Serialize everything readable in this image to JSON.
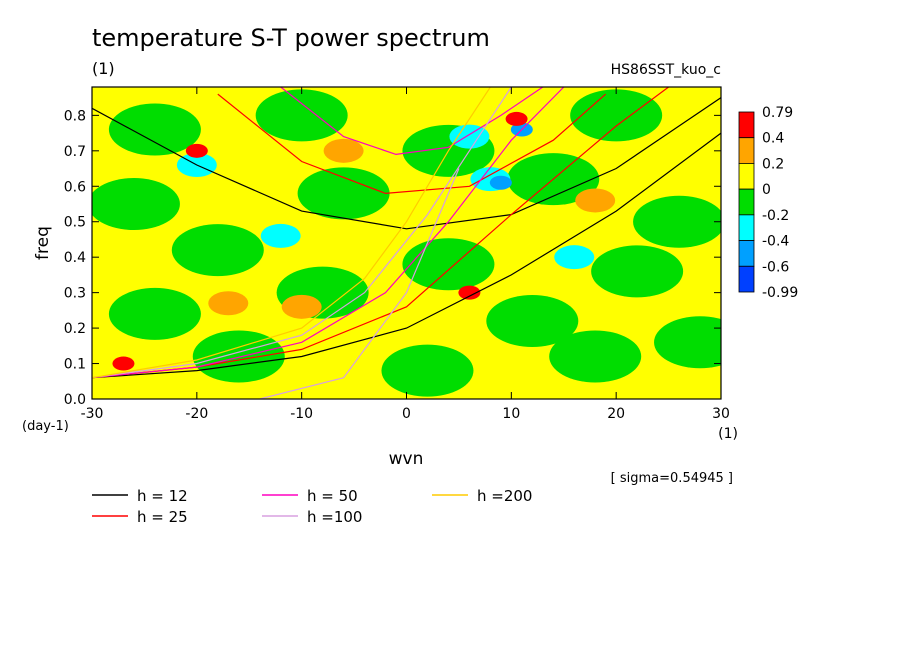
{
  "chart_data": {
    "type": "heatmap",
    "title": "temperature S-T power spectrum",
    "subtitle": "(1)",
    "dataset_label": "HS86SST_kuo_c",
    "xlabel": "wvn",
    "x_unit": "(1)",
    "ylabel": "freq",
    "y_unit": "(day-1)",
    "xlim": [
      -30,
      30
    ],
    "ylim": [
      0,
      0.88
    ],
    "x_ticks": [
      "-30",
      "-20",
      "-10",
      "0",
      "10",
      "20",
      "30"
    ],
    "y_ticks": [
      "0.0",
      "0.1",
      "0.2",
      "0.3",
      "0.4",
      "0.5",
      "0.6",
      "0.7",
      "0.8"
    ],
    "sigma_label": "[ sigma=0.54945 ]",
    "colorbar": {
      "labels": [
        "0.79",
        "0.4",
        "0.2",
        "0",
        "-0.2",
        "-0.4",
        "-0.6",
        "-0.99"
      ],
      "colors": [
        "#ff0000",
        "#ffa500",
        "#ffff00",
        "#00dd00",
        "#00ffff",
        "#00a0ff",
        "#0040ff"
      ]
    },
    "background_color": "#ffff00",
    "patches": [
      {
        "x": -24,
        "y": 0.76,
        "color": "#00dd00"
      },
      {
        "x": -10,
        "y": 0.8,
        "color": "#00dd00"
      },
      {
        "x": 20,
        "y": 0.8,
        "color": "#00dd00"
      },
      {
        "x": -26,
        "y": 0.55,
        "color": "#00dd00"
      },
      {
        "x": -6,
        "y": 0.58,
        "color": "#00dd00"
      },
      {
        "x": 14,
        "y": 0.62,
        "color": "#00dd00"
      },
      {
        "x": 26,
        "y": 0.5,
        "color": "#00dd00"
      },
      {
        "x": -18,
        "y": 0.42,
        "color": "#00dd00"
      },
      {
        "x": 4,
        "y": 0.38,
        "color": "#00dd00"
      },
      {
        "x": 22,
        "y": 0.36,
        "color": "#00dd00"
      },
      {
        "x": -24,
        "y": 0.24,
        "color": "#00dd00"
      },
      {
        "x": -8,
        "y": 0.3,
        "color": "#00dd00"
      },
      {
        "x": 12,
        "y": 0.22,
        "color": "#00dd00"
      },
      {
        "x": -16,
        "y": 0.12,
        "color": "#00dd00"
      },
      {
        "x": 2,
        "y": 0.08,
        "color": "#00dd00"
      },
      {
        "x": 18,
        "y": 0.12,
        "color": "#00dd00"
      },
      {
        "x": 28,
        "y": 0.16,
        "color": "#00dd00"
      },
      {
        "x": 4,
        "y": 0.7,
        "color": "#00dd00"
      },
      {
        "x": -20,
        "y": 0.66,
        "color": "#00ffff"
      },
      {
        "x": 8,
        "y": 0.62,
        "color": "#00ffff"
      },
      {
        "x": 6,
        "y": 0.74,
        "color": "#00ffff"
      },
      {
        "x": -12,
        "y": 0.46,
        "color": "#00ffff"
      },
      {
        "x": 16,
        "y": 0.4,
        "color": "#00ffff"
      },
      {
        "x": 11,
        "y": 0.76,
        "color": "#00a0ff"
      },
      {
        "x": 9,
        "y": 0.61,
        "color": "#00a0ff"
      },
      {
        "x": -10,
        "y": 0.26,
        "color": "#ffa500"
      },
      {
        "x": -17,
        "y": 0.27,
        "color": "#ffa500"
      },
      {
        "x": -6,
        "y": 0.7,
        "color": "#ffa500"
      },
      {
        "x": 18,
        "y": 0.56,
        "color": "#ffa500"
      },
      {
        "x": 6,
        "y": 0.3,
        "color": "#ff0000"
      },
      {
        "x": 10.5,
        "y": 0.79,
        "color": "#ff0000"
      },
      {
        "x": -20,
        "y": 0.7,
        "color": "#ff0000"
      },
      {
        "x": -27,
        "y": 0.1,
        "color": "#ff0000"
      }
    ],
    "series": [
      {
        "name": "h = 12",
        "color": "#000000",
        "kind": "dispersion-curves",
        "curves": [
          {
            "x": [
              -30,
              -20,
              -10,
              0,
              10,
              20,
              30
            ],
            "y": [
              0.82,
              0.66,
              0.53,
              0.48,
              0.52,
              0.65,
              0.85
            ]
          },
          {
            "x": [
              -30,
              -20,
              -10,
              0,
              10,
              20,
              30
            ],
            "y": [
              0.06,
              0.08,
              0.12,
              0.2,
              0.35,
              0.53,
              0.75
            ]
          }
        ]
      },
      {
        "name": "h = 25",
        "color": "#ff0000",
        "kind": "dispersion-curves",
        "curves": [
          {
            "x": [
              -18,
              -10,
              -2,
              6,
              14,
              19
            ],
            "y": [
              0.86,
              0.67,
              0.58,
              0.6,
              0.73,
              0.86
            ]
          },
          {
            "x": [
              -30,
              -20,
              -10,
              0,
              10,
              20,
              25
            ],
            "y": [
              0.06,
              0.09,
              0.14,
              0.26,
              0.52,
              0.77,
              0.88
            ]
          }
        ]
      },
      {
        "name": "h = 50",
        "color": "#ff00c0",
        "kind": "dispersion-curves",
        "curves": [
          {
            "x": [
              -12,
              -6,
              -1,
              4,
              9,
              13
            ],
            "y": [
              0.88,
              0.74,
              0.69,
              0.71,
              0.8,
              0.88
            ]
          },
          {
            "x": [
              -30,
              -20,
              -10,
              -2,
              4,
              10,
              15
            ],
            "y": [
              0.06,
              0.09,
              0.16,
              0.3,
              0.5,
              0.73,
              0.88
            ]
          }
        ]
      },
      {
        "name": "h =100",
        "color": "#d8a0e0",
        "kind": "dispersion-curves",
        "curves": [
          {
            "x": [
              -30,
              -20,
              -10,
              -4,
              2,
              6,
              10
            ],
            "y": [
              0.06,
              0.1,
              0.18,
              0.3,
              0.52,
              0.7,
              0.88
            ]
          },
          {
            "x": [
              -14,
              -6,
              0,
              5
            ],
            "y": [
              0.0,
              0.06,
              0.3,
              0.65
            ]
          }
        ]
      },
      {
        "name": "h =200",
        "color": "#ffcc00",
        "kind": "dispersion-curves",
        "curves": [
          {
            "x": [
              -30,
              -20,
              -10,
              -4,
              0,
              4,
              8
            ],
            "y": [
              0.06,
              0.11,
              0.2,
              0.34,
              0.5,
              0.7,
              0.88
            ]
          }
        ]
      }
    ],
    "legend": [
      {
        "label": "h = 12",
        "color": "#000000"
      },
      {
        "label": "h = 25",
        "color": "#ff0000"
      },
      {
        "label": "h = 50",
        "color": "#ff00c0"
      },
      {
        "label": "h =100",
        "color": "#d8a0e0"
      },
      {
        "label": "h =200",
        "color": "#ffcc00"
      }
    ]
  }
}
